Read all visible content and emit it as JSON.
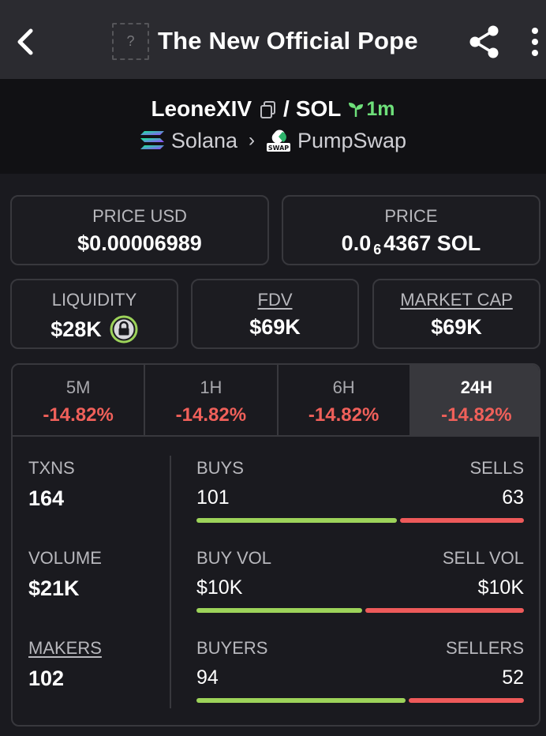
{
  "header": {
    "title": "The New Official Pope",
    "thumb_glyph": "?",
    "icons": {
      "back": "back-arrow-icon",
      "share": "share-icon",
      "more": "more-vertical-icon"
    }
  },
  "pair": {
    "base": "LeoneXIV",
    "separator": "/",
    "quote": "SOL",
    "age": "1m",
    "chain": "Solana",
    "dex": "PumpSwap",
    "dex_badge": "SWAP",
    "colors": {
      "age": "#6ee07a"
    }
  },
  "prices": {
    "price_usd_label": "PRICE USD",
    "price_usd_value": "$0.00006989",
    "price_label": "PRICE",
    "price_prefix": "0.0",
    "price_subscript": "6",
    "price_suffix": "4367 SOL"
  },
  "metrics": {
    "liquidity_label": "LIQUIDITY",
    "liquidity_value": "$28K",
    "fdv_label": "FDV",
    "fdv_value": "$69K",
    "mcap_label": "MARKET CAP",
    "mcap_value": "$69K"
  },
  "timeframes": [
    {
      "label": "5M",
      "change": "-14.82%",
      "active": false
    },
    {
      "label": "1H",
      "change": "-14.82%",
      "active": false
    },
    {
      "label": "6H",
      "change": "-14.82%",
      "active": false
    },
    {
      "label": "24H",
      "change": "-14.82%",
      "active": true
    }
  ],
  "stats": {
    "txns_label": "TXNS",
    "txns_value": "164",
    "volume_label": "VOLUME",
    "volume_value": "$21K",
    "makers_label": "MAKERS",
    "makers_value": "102"
  },
  "ratios": [
    {
      "left_label": "BUYS",
      "right_label": "SELLS",
      "left_value": "101",
      "right_value": "63",
      "left_fraction": 0.616
    },
    {
      "left_label": "BUY VOL",
      "right_label": "SELL VOL",
      "left_value": "$10K",
      "right_value": "$10K",
      "left_fraction": 0.51
    },
    {
      "left_label": "BUYERS",
      "right_label": "SELLERS",
      "left_value": "94",
      "right_value": "52",
      "left_fraction": 0.644
    }
  ],
  "colors": {
    "positive": "#9dd35a",
    "negative": "#ee5a5a",
    "change": "#f0605a"
  }
}
